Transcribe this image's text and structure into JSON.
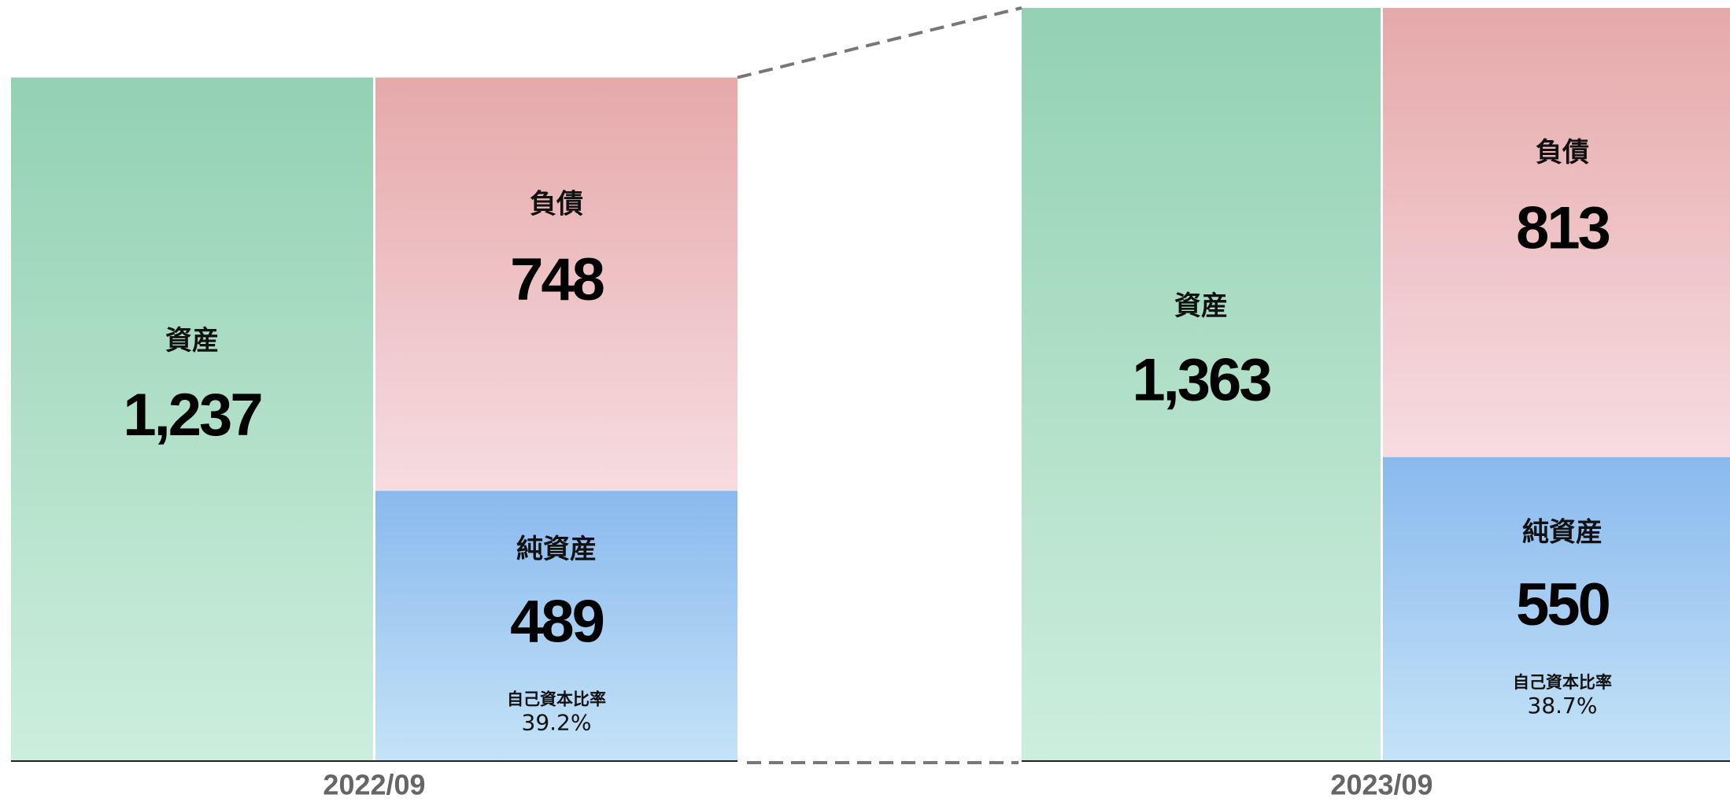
{
  "chart_data": {
    "type": "balance_sheet",
    "categories": [
      "2022/09",
      "2023/09"
    ],
    "series": [
      {
        "name": "資産",
        "color": "#93d1b2",
        "values": [
          1237,
          1363
        ],
        "value_labels": [
          "1,237",
          "1,363"
        ]
      },
      {
        "name": "負債",
        "color": "#e6a9aa",
        "values": [
          748,
          813
        ]
      },
      {
        "name": "純資産",
        "color": "#89b9ee",
        "values": [
          489,
          550
        ]
      }
    ],
    "ratio": {
      "name": "自己資本比率",
      "values": [
        39.2,
        38.7
      ],
      "value_labels": [
        "39.2%",
        "38.7%"
      ]
    }
  }
}
